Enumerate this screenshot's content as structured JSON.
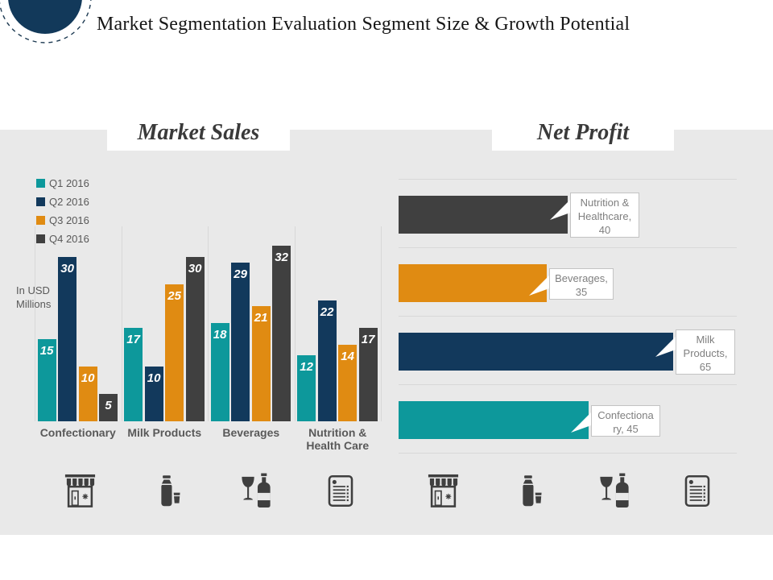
{
  "header": {
    "title": "Market Segmentation Evaluation Segment Size & Growth Potential"
  },
  "charts": {
    "market_sales_title": "Market Sales",
    "net_profit_title": "Net Profit",
    "units_note": [
      "In USD",
      "Millions"
    ]
  },
  "chart_data": [
    {
      "type": "bar",
      "title": "Market Sales",
      "ylabel": "In USD Millions",
      "ylim": [
        0,
        35
      ],
      "grid": "vertical-category-separators",
      "legend_position": "top-left",
      "data_labels": true,
      "categories": [
        "Confectionary",
        "Milk Products",
        "Beverages",
        "Nutrition & Health Care"
      ],
      "series": [
        {
          "name": "Q1 2016",
          "color": "#0d989b",
          "values": [
            15,
            17,
            18,
            12
          ]
        },
        {
          "name": "Q2 2016",
          "color": "#12395c",
          "values": [
            30,
            10,
            29,
            22
          ]
        },
        {
          "name": "Q3 2016",
          "color": "#e08b12",
          "values": [
            10,
            25,
            21,
            14
          ]
        },
        {
          "name": "Q4 2016",
          "color": "#404040",
          "values": [
            5,
            30,
            32,
            17
          ]
        }
      ]
    },
    {
      "type": "bar-horizontal",
      "title": "Net Profit",
      "xlim": [
        0,
        80
      ],
      "grid": "horizontal-category-separators",
      "categories": [
        "Nutrition & Healthcare",
        "Beverages",
        "Milk Products",
        "Confectionary"
      ],
      "values": [
        40,
        35,
        65,
        45
      ],
      "colors": [
        "#404040",
        "#e08b12",
        "#12395c",
        "#0d989b"
      ],
      "data_labels": [
        {
          "text": "Nutrition & Healthcare, 40",
          "lines": [
            "Nutrition &",
            "Healthcare,",
            "40"
          ]
        },
        {
          "text": "Beverages, 35",
          "lines": [
            "Beverages,",
            "35"
          ]
        },
        {
          "text": "Milk Products, 65",
          "lines": [
            "Milk",
            "Products,",
            "65"
          ]
        },
        {
          "text": "Confectionary, 45",
          "lines": [
            "Confectiona",
            "ry, 45"
          ]
        }
      ]
    }
  ],
  "icons": {
    "labels": [
      "storefront",
      "milk-bottle",
      "wine",
      "menu-card"
    ],
    "color": "#3f3f3f"
  },
  "theme": {
    "panel_bg": "#e9e9e9",
    "grid_line": "#d8d8d8",
    "text_gray": "#595959",
    "callout_text": "#7f7f7f",
    "callout_border": "#c3c3c3",
    "logo_navy": "#12395a",
    "title_text": "#161616"
  }
}
